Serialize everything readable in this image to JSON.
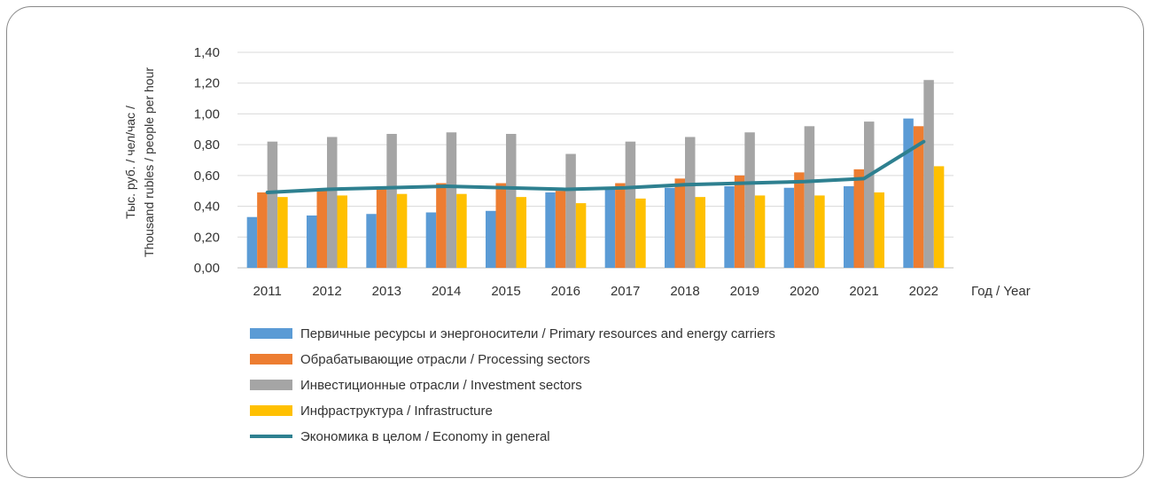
{
  "chart_data": {
    "type": "bar",
    "categories": [
      "2011",
      "2012",
      "2013",
      "2014",
      "2015",
      "2016",
      "2017",
      "2018",
      "2019",
      "2020",
      "2021",
      "2022"
    ],
    "ylabel_line1": "Тыс. руб. / чел/час /",
    "ylabel_line2": "Thousand rubles / people per hour",
    "xlabel": "Год / Year",
    "ylim": [
      0,
      1.4
    ],
    "yticks": [
      "0,00",
      "0,20",
      "0,40",
      "0,60",
      "0,80",
      "1,00",
      "1,20",
      "1,40"
    ],
    "grid": true,
    "legend_position": "bottom",
    "series": [
      {
        "name": "Первичные ресурсы и энергоносители / Primary resources and energy carriers",
        "type": "bar",
        "color": "#5B9BD5",
        "values": [
          0.33,
          0.34,
          0.35,
          0.36,
          0.37,
          0.49,
          0.51,
          0.52,
          0.53,
          0.52,
          0.53,
          0.97
        ]
      },
      {
        "name": "Обрабатывающие отрасли / Processing sectors",
        "type": "bar",
        "color": "#ED7D31",
        "values": [
          0.49,
          0.5,
          0.51,
          0.55,
          0.55,
          0.5,
          0.55,
          0.58,
          0.6,
          0.62,
          0.64,
          0.92
        ]
      },
      {
        "name": "Инвестиционные отрасли / Investment sectors",
        "type": "bar",
        "color": "#A5A5A5",
        "values": [
          0.82,
          0.85,
          0.87,
          0.88,
          0.87,
          0.74,
          0.82,
          0.85,
          0.88,
          0.92,
          0.95,
          1.22
        ]
      },
      {
        "name": "Инфраструктура / Infrastructure",
        "type": "bar",
        "color": "#FFC000",
        "values": [
          0.46,
          0.47,
          0.48,
          0.48,
          0.46,
          0.42,
          0.45,
          0.46,
          0.47,
          0.47,
          0.49,
          0.66
        ]
      },
      {
        "name": "Экономика в целом / Economy in general",
        "type": "line",
        "color": "#2E8090",
        "values": [
          0.49,
          0.51,
          0.52,
          0.53,
          0.52,
          0.51,
          0.52,
          0.54,
          0.55,
          0.56,
          0.58,
          0.82
        ]
      }
    ]
  }
}
